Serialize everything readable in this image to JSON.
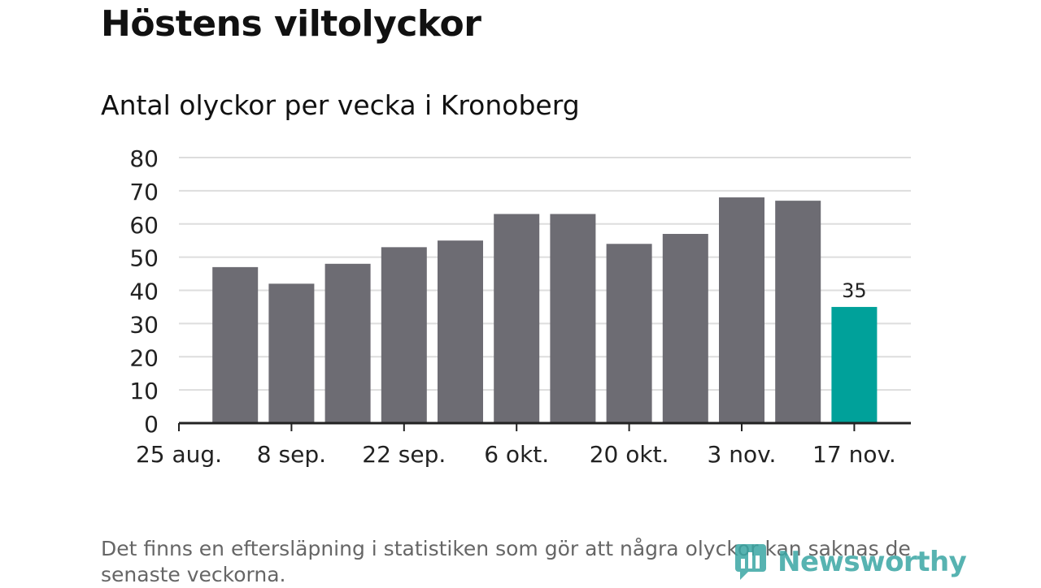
{
  "header": {
    "title": "Höstens viltolyckor",
    "subtitle": "Antal olyckor per vecka i Kronoberg"
  },
  "footnote": "Det finns en eftersläpning i statistiken som gör att några olyckor kan saknas de senaste veckorna.",
  "brand": {
    "name": "Newsworthy",
    "color": "#3aa6a4"
  },
  "colors": {
    "bar": "#6d6c73",
    "highlight": "#00a19a",
    "grid": "#dddddd",
    "axis": "#222222"
  },
  "chart_data": {
    "type": "bar",
    "title": "Höstens viltolyckor",
    "subtitle": "Antal olyckor per vecka i Kronoberg",
    "categories": [
      "25 aug.",
      "1 sep.",
      "8 sep.",
      "15 sep.",
      "22 sep.",
      "29 sep.",
      "6 okt.",
      "13 okt.",
      "20 okt.",
      "27 okt.",
      "3 nov.",
      "10 nov.",
      "17 nov."
    ],
    "x_tick_labels": [
      "25 aug.",
      "8 sep.",
      "22 sep.",
      "6 okt.",
      "20 okt.",
      "3 nov.",
      "17 nov."
    ],
    "values": [
      null,
      47,
      42,
      48,
      53,
      55,
      63,
      63,
      54,
      57,
      68,
      67,
      35
    ],
    "highlight_index": 12,
    "data_labels": [
      {
        "index": 12,
        "text": "35"
      }
    ],
    "y_ticks": [
      0,
      10,
      20,
      30,
      40,
      50,
      60,
      70,
      80
    ],
    "ylim": [
      0,
      80
    ],
    "grid": true,
    "xlabel": "",
    "ylabel": ""
  }
}
